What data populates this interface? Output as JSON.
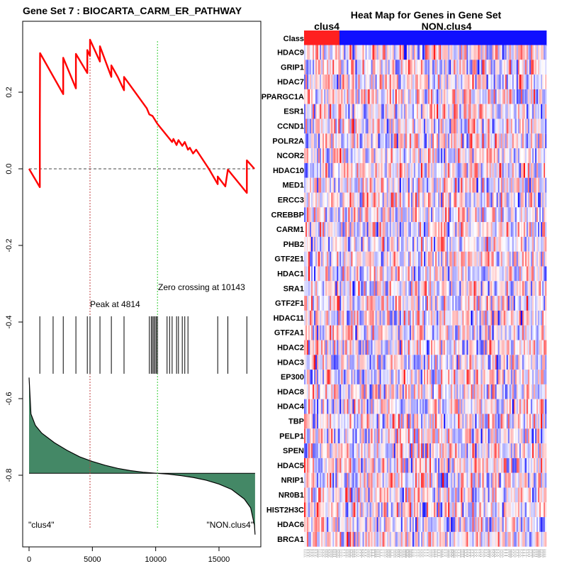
{
  "chart_data": [
    {
      "type": "line",
      "title": "Gene Set  7 : BIOCARTA_CARM_ER_PATHWAY",
      "xlim": [
        0,
        18000
      ],
      "ylim": [
        -0.97,
        0.37
      ],
      "x_ticks": [
        0,
        5000,
        10000,
        15000
      ],
      "y_ticks": [
        {
          "value": 0.2,
          "label": "0.2"
        },
        {
          "value": 0.0,
          "label": "0.0"
        },
        {
          "value": -0.2,
          "label": "-0.2"
        },
        {
          "value": -0.4,
          "label": "-0.4"
        },
        {
          "value": -0.6,
          "label": "-0.6"
        },
        {
          "value": -0.8,
          "label": "-0.8"
        }
      ],
      "enrichment_color": "#ff0000",
      "enrichment_score": [
        [
          0,
          0.0
        ],
        [
          850,
          -0.048
        ],
        [
          850,
          0.128
        ],
        [
          870,
          0.302
        ],
        [
          2700,
          0.195
        ],
        [
          2700,
          0.29
        ],
        [
          3700,
          0.21
        ],
        [
          3700,
          0.3
        ],
        [
          4600,
          0.25
        ],
        [
          4600,
          0.31
        ],
        [
          4814,
          0.295
        ],
        [
          4814,
          0.337
        ],
        [
          5600,
          0.28
        ],
        [
          5600,
          0.32
        ],
        [
          6500,
          0.24
        ],
        [
          6500,
          0.27
        ],
        [
          7000,
          0.24
        ],
        [
          7500,
          0.205
        ],
        [
          7500,
          0.24
        ],
        [
          9300,
          0.158
        ],
        [
          9500,
          0.142
        ],
        [
          9750,
          0.138
        ],
        [
          10143,
          0.117
        ],
        [
          11300,
          0.07
        ],
        [
          11400,
          0.078
        ],
        [
          11650,
          0.062
        ],
        [
          11800,
          0.075
        ],
        [
          12100,
          0.06
        ],
        [
          12300,
          0.07
        ],
        [
          12550,
          0.05
        ],
        [
          12700,
          0.055
        ],
        [
          12950,
          0.04
        ],
        [
          13200,
          0.05
        ],
        [
          14200,
          0.0
        ],
        [
          14900,
          -0.04
        ],
        [
          14900,
          -0.02
        ],
        [
          15500,
          -0.046
        ],
        [
          15700,
          -0.002
        ],
        [
          17200,
          -0.063
        ],
        [
          17200,
          0.022
        ],
        [
          17800,
          0.0
        ]
      ],
      "zero_line": {
        "value": 0.0,
        "color": "#444444"
      },
      "peak": {
        "position": 4814,
        "label": "Peak at 4814",
        "color": "#c04040"
      },
      "zero_crossing": {
        "position": 10143,
        "label": "Zero crossing at 10143",
        "color": "#33cc33"
      },
      "hits": [
        850,
        1900,
        2700,
        3700,
        4600,
        4814,
        5600,
        6500,
        7500,
        9500,
        9650,
        9750,
        9850,
        9950,
        10050,
        10143,
        10900,
        11100,
        11300,
        11650,
        11800,
        12100,
        12300,
        12550,
        14900,
        15700,
        17200
      ],
      "hits_y": [
        -0.385,
        -0.535
      ],
      "rank_metric": {
        "color": "#448866",
        "baseline": -0.795,
        "points": [
          [
            0,
            -0.545
          ],
          [
            150,
            -0.64
          ],
          [
            500,
            -0.67
          ],
          [
            1000,
            -0.69
          ],
          [
            2000,
            -0.715
          ],
          [
            3000,
            -0.735
          ],
          [
            4000,
            -0.752
          ],
          [
            5000,
            -0.764
          ],
          [
            6000,
            -0.774
          ],
          [
            7000,
            -0.782
          ],
          [
            8000,
            -0.788
          ],
          [
            9000,
            -0.792
          ],
          [
            10143,
            -0.795
          ],
          [
            11000,
            -0.797
          ],
          [
            12000,
            -0.801
          ],
          [
            13000,
            -0.806
          ],
          [
            14000,
            -0.813
          ],
          [
            15000,
            -0.823
          ],
          [
            16000,
            -0.837
          ],
          [
            17000,
            -0.862
          ],
          [
            17500,
            -0.885
          ],
          [
            17800,
            -0.93
          ],
          [
            17850,
            -0.955
          ]
        ]
      },
      "corner_labels": {
        "left": "\"clus4\"",
        "right": "\"NON.clus4\""
      }
    },
    {
      "type": "heatmap",
      "title": "Heat Map for Genes in Gene Set",
      "class_label": "Class",
      "groups": [
        {
          "name": "clus4",
          "fraction": 0.146,
          "color": "#ff2020"
        },
        {
          "name": "NON.clus4",
          "fraction": 0.854,
          "color": "#1010ff"
        }
      ],
      "genes": [
        "HDAC9",
        "GRIP1",
        "HDAC7",
        "PPARGC1A",
        "ESR1",
        "CCND1",
        "POLR2A",
        "NCOR2",
        "HDAC10",
        "MED1",
        "ERCC3",
        "CREBBP",
        "CARM1",
        "PHB2",
        "GTF2E1",
        "HDAC1",
        "SRA1",
        "GTF2F1",
        "HDAC11",
        "GTF2A1",
        "HDAC2",
        "HDAC3",
        "EP300",
        "HDAC8",
        "HDAC4",
        "TBP",
        "PELP1",
        "SPEN",
        "HDAC5",
        "NRIP1",
        "NR0B1",
        "HIST2H3C",
        "HDAC6",
        "BRCA1"
      ],
      "color_scale": {
        "low": "#0000ff",
        "mid": "#ffffff",
        "high": "#ff0000"
      },
      "samples": 170
    }
  ]
}
